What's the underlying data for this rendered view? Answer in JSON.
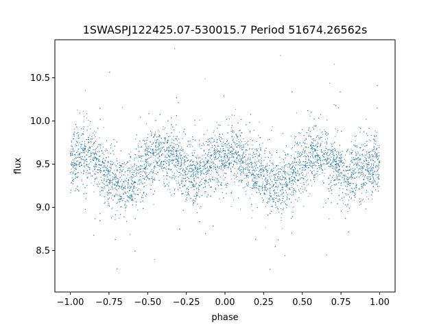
{
  "chart_data": {
    "type": "scatter",
    "title": "1SWASPJ122425.07-530015.7 Period 51674.26562s",
    "xlabel": "phase",
    "ylabel": "flux",
    "xlim": [
      -1.1,
      1.1
    ],
    "ylim": [
      8.02,
      10.94
    ],
    "xticks": [
      -1.0,
      -0.75,
      -0.5,
      -0.25,
      0.0,
      0.25,
      0.5,
      0.75,
      1.0
    ],
    "xtick_labels": [
      "−1.00",
      "−0.75",
      "−0.50",
      "−0.25",
      "0.00",
      "0.25",
      "0.50",
      "0.75",
      "1.00"
    ],
    "yticks": [
      8.5,
      9.0,
      9.5,
      10.0,
      10.5
    ],
    "ytick_labels": [
      "8.5",
      "9.0",
      "9.5",
      "10.0",
      "10.5"
    ],
    "grid": false,
    "marker_color": "#1f77b4",
    "series": [
      {
        "x": [
          -1.0,
          -0.95,
          -0.9,
          -0.85,
          -0.8,
          -0.75,
          -0.7,
          -0.65,
          -0.6,
          -0.55,
          -0.5,
          -0.45,
          -0.4,
          -0.35,
          -0.3,
          -0.25,
          -0.2,
          -0.15,
          -0.1,
          -0.05,
          0.0,
          0.05,
          0.1,
          0.15,
          0.2,
          0.25,
          0.3,
          0.35,
          0.4,
          0.45,
          0.5,
          0.55,
          0.6,
          0.65,
          0.7,
          0.75,
          0.8,
          0.85,
          0.9,
          0.95,
          1.0
        ],
        "y": [
          9.5,
          9.58,
          9.6,
          9.55,
          9.45,
          9.35,
          9.28,
          9.25,
          9.3,
          9.42,
          9.52,
          9.6,
          9.62,
          9.58,
          9.5,
          9.42,
          9.38,
          9.4,
          9.48,
          9.56,
          9.6,
          9.6,
          9.55,
          9.48,
          9.42,
          9.35,
          9.28,
          9.25,
          9.3,
          9.42,
          9.52,
          9.6,
          9.62,
          9.58,
          9.5,
          9.42,
          9.38,
          9.4,
          9.45,
          9.48,
          9.5
        ],
        "scatter_sd": 0.17
      }
    ]
  }
}
